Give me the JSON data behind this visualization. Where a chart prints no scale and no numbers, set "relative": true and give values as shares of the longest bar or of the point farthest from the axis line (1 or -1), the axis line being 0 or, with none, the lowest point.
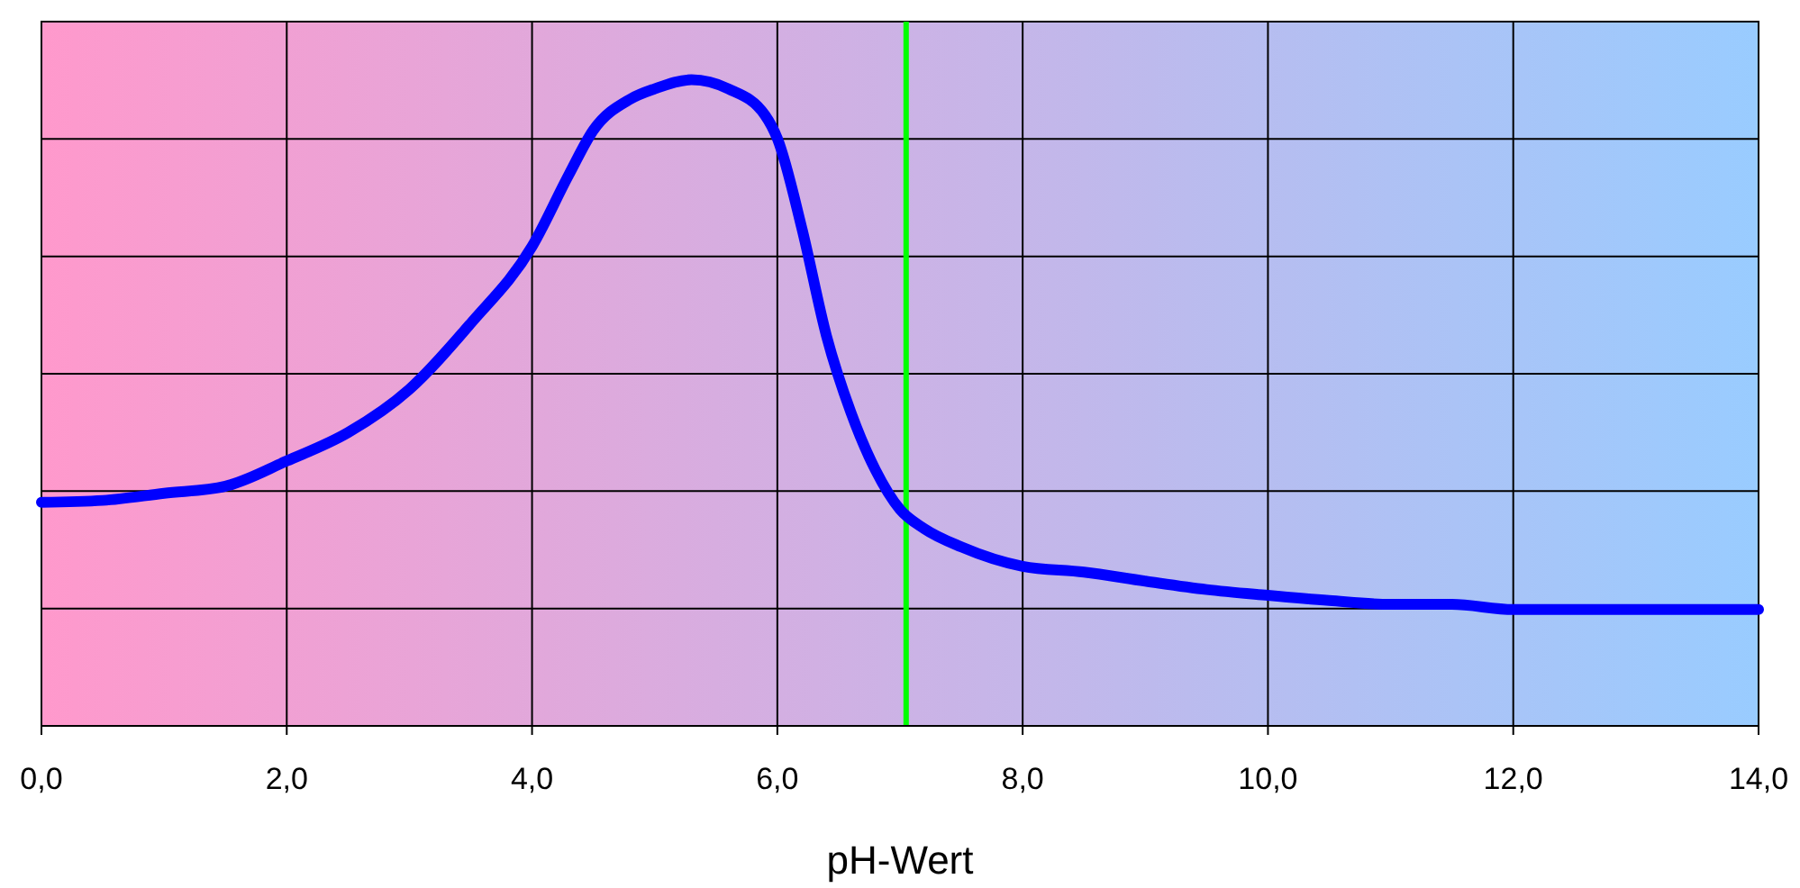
{
  "chart_data": {
    "type": "line",
    "xlabel": "pH-Wert",
    "relative": true,
    "xlim": [
      0,
      14
    ],
    "xticks": [
      {
        "value": 0,
        "label": "0,0"
      },
      {
        "value": 2,
        "label": "2,0"
      },
      {
        "value": 4,
        "label": "4,0"
      },
      {
        "value": 6,
        "label": "6,0"
      },
      {
        "value": 8,
        "label": "8,0"
      },
      {
        "value": 10,
        "label": "10,0"
      },
      {
        "value": 12,
        "label": "12,0"
      },
      {
        "value": 14,
        "label": "14,0"
      }
    ],
    "tick_labels": "x",
    "grid": true,
    "line_style": "solid",
    "series": [
      {
        "color": "#0000ff",
        "x": [
          0,
          0.5,
          1,
          1.5,
          2,
          2.5,
          3,
          3.5,
          4,
          4.3,
          4.5,
          4.8,
          5,
          5.3,
          5.6,
          5.9,
          6,
          6.2,
          6.4,
          6.6,
          6.8,
          7,
          7.2,
          7.5,
          8,
          8.5,
          9,
          9.5,
          10,
          10.5,
          11,
          11.5,
          12,
          13,
          14
        ],
        "values": [
          0.346,
          0.349,
          0.36,
          0.371,
          0.41,
          0.454,
          0.521,
          0.623,
          0.742,
          0.853,
          0.922,
          0.97,
          0.986,
          1,
          0.986,
          0.945,
          0.909,
          0.77,
          0.604,
          0.485,
          0.396,
          0.335,
          0.305,
          0.277,
          0.247,
          0.238,
          0.224,
          0.211,
          0.202,
          0.194,
          0.188,
          0.188,
          0.18,
          0.18,
          0.18
        ]
      }
    ],
    "ref_lines": [
      {
        "axis": "x",
        "value": 7.05,
        "color": "#00ff00"
      }
    ]
  }
}
